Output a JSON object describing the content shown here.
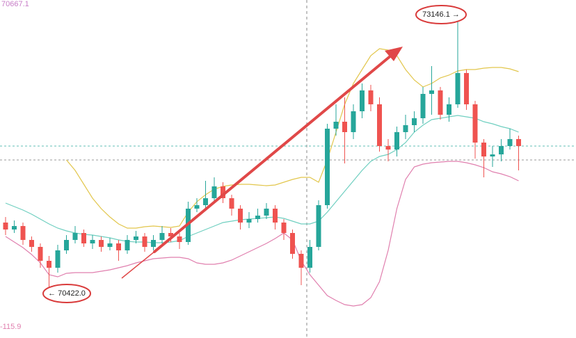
{
  "chart_data": {
    "type": "candlestick",
    "up_color": "#26a69a",
    "down_color": "#ef5350",
    "ylim": [
      69954,
      73356
    ],
    "open": [
      71116,
      71046,
      71081,
      70941,
      70871,
      70731,
      70661,
      70836,
      70941,
      71011,
      70906,
      70941,
      70871,
      70906,
      70836,
      70941,
      70976,
      70871,
      70941,
      71011,
      70976,
      70920,
      71256,
      71291,
      71361,
      71480,
      71361,
      71256,
      71116,
      71151,
      71186,
      71256,
      71116,
      71011,
      70801,
      70661,
      70871,
      71291,
      72061,
      72131,
      72026,
      72236,
      72446,
      72306,
      71886,
      71851,
      72026,
      72096,
      72166,
      72411,
      72446,
      72201,
      72306,
      72621,
      72306,
      71921,
      71781,
      71802,
      71886,
      71956
    ],
    "high": [
      71172,
      71137,
      71116,
      70976,
      70906,
      70780,
      70892,
      70990,
      71081,
      71046,
      70990,
      70976,
      70962,
      70941,
      70990,
      71032,
      71011,
      70990,
      71081,
      71060,
      71011,
      71326,
      71361,
      71536,
      71571,
      71522,
      71396,
      71291,
      71221,
      71256,
      71312,
      71291,
      71151,
      71046,
      70836,
      70941,
      71340,
      72110,
      72306,
      72376,
      72306,
      72516,
      72502,
      72376,
      71956,
      72082,
      72201,
      72236,
      72481,
      72691,
      72481,
      72376,
      73146.1,
      72656,
      72341,
      71956,
      71886,
      71956,
      72061,
      71991
    ],
    "low": [
      70990,
      71011,
      70892,
      70822,
      70661,
      70422.0,
      70612,
      70801,
      70906,
      70871,
      70850,
      70822,
      70836,
      70731,
      70801,
      70906,
      70822,
      70836,
      70906,
      70920,
      70850,
      70892,
      71221,
      71256,
      71326,
      71312,
      71186,
      71046,
      71060,
      71116,
      71151,
      71046,
      70941,
      70752,
      70486,
      70612,
      70836,
      71256,
      71991,
      71711,
      71956,
      72166,
      72236,
      71830,
      71732,
      71781,
      71956,
      72026,
      72110,
      72201,
      72152,
      72131,
      72271,
      72250,
      71760,
      71571,
      71676,
      71732,
      71851,
      71641
    ],
    "close": [
      71046,
      71081,
      70941,
      70871,
      70731,
      70661,
      70836,
      70941,
      71011,
      70906,
      70941,
      70871,
      70906,
      70836,
      70941,
      70976,
      70871,
      70941,
      71011,
      70976,
      70920,
      71256,
      71291,
      71361,
      71480,
      71361,
      71256,
      71116,
      71151,
      71186,
      71256,
      71116,
      71011,
      70801,
      70661,
      70871,
      71291,
      72061,
      72131,
      72026,
      72236,
      72446,
      72306,
      71886,
      71851,
      72026,
      72096,
      72166,
      72411,
      72446,
      72201,
      72306,
      72621,
      72306,
      71921,
      71781,
      71802,
      71886,
      71956,
      71886
    ],
    "series": [
      {
        "color": "#e2c64c",
        "values": [
          null,
          null,
          null,
          null,
          null,
          null,
          null,
          71746,
          71641,
          71501,
          71361,
          71256,
          71172,
          71102,
          71060,
          71060,
          71074,
          71081,
          71074,
          71067,
          71081,
          71221,
          71326,
          71396,
          71452,
          71480,
          71494,
          71501,
          71501,
          71494,
          71487,
          71494,
          71522,
          71550,
          71571,
          71571,
          71522,
          71746,
          72026,
          72306,
          72516,
          72656,
          72796,
          72866,
          72852,
          72796,
          72656,
          72551,
          72481,
          72516,
          72572,
          72600,
          72642,
          72656,
          72656,
          72670,
          72677,
          72677,
          72663,
          72635
        ]
      },
      {
        "color": "#6fcfc0",
        "values": [
          71312,
          71277,
          71242,
          71200,
          71151,
          71102,
          71060,
          71032,
          71011,
          70997,
          70990,
          70976,
          70962,
          70941,
          70927,
          70920,
          70920,
          70913,
          70913,
          70920,
          70934,
          70976,
          71011,
          71046,
          71081,
          71116,
          71130,
          71144,
          71151,
          71158,
          71165,
          71172,
          71158,
          71130,
          71102,
          71102,
          71130,
          71221,
          71326,
          71431,
          71536,
          71641,
          71732,
          71781,
          71802,
          71851,
          71921,
          72026,
          72096,
          72152,
          72166,
          72180,
          72194,
          72180,
          72166,
          72131,
          72110,
          72082,
          72061,
          72026
        ]
      },
      {
        "color": "#e07fae",
        "values": [
          70976,
          70920,
          70864,
          70794,
          70710,
          70591,
          70570,
          70605,
          70612,
          70612,
          70612,
          70626,
          70640,
          70661,
          70682,
          70710,
          70731,
          70752,
          70759,
          70766,
          70766,
          70752,
          70710,
          70696,
          70696,
          70710,
          70738,
          70780,
          70822,
          70864,
          70906,
          70955,
          71011,
          70941,
          70731,
          70591,
          70486,
          70381,
          70332,
          70290,
          70276,
          70290,
          70360,
          70521,
          70836,
          71256,
          71550,
          71676,
          71704,
          71718,
          71725,
          71732,
          71732,
          71718,
          71697,
          71669,
          71627,
          71606,
          71578,
          71536
        ]
      }
    ],
    "price_lines": [
      {
        "value": 71886,
        "color": "#5fbfb5"
      },
      {
        "value": 71746,
        "color": "#9a9a9a"
      }
    ],
    "annotations": [
      {
        "text": "70667.1",
        "color": "#c77dc7"
      },
      {
        "text": "-115.9",
        "color": "#e07fae"
      },
      {
        "text": "73146.1 →",
        "color": "#222222"
      },
      {
        "text": "← 70422.0",
        "color": "#222222"
      }
    ]
  }
}
